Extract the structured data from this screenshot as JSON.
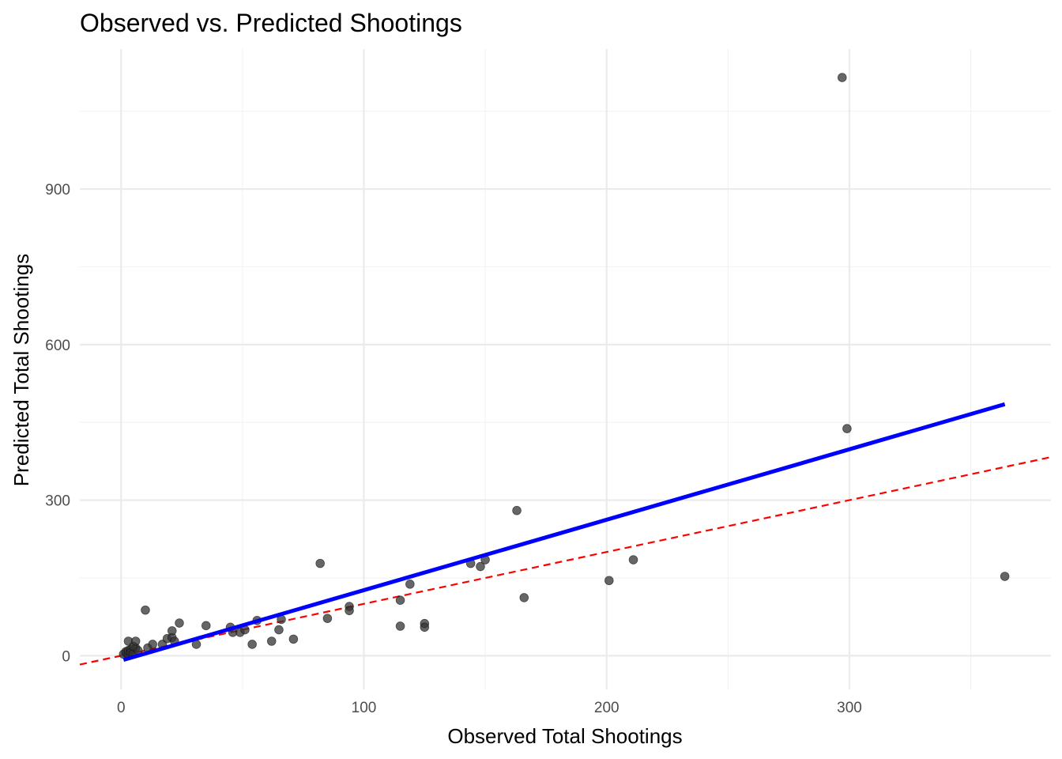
{
  "chart_data": {
    "type": "scatter",
    "title": "Observed vs. Predicted Shootings",
    "xlabel": "Observed Total Shootings",
    "ylabel": "Predicted Total Shootings",
    "xlim": [
      -17,
      383
    ],
    "ylim": [
      -65,
      1170
    ],
    "x_ticks": [
      0,
      100,
      200,
      300
    ],
    "y_ticks": [
      0,
      300,
      600,
      900
    ],
    "x_minor": [
      50,
      150,
      250,
      350
    ],
    "y_minor": [
      150,
      450,
      750,
      1050
    ],
    "grid": true,
    "points": {
      "color": "#333333",
      "opacity": 0.75,
      "data": [
        [
          1,
          3
        ],
        [
          2,
          5
        ],
        [
          2,
          8
        ],
        [
          3,
          2
        ],
        [
          3,
          10
        ],
        [
          4,
          12
        ],
        [
          4,
          6
        ],
        [
          5,
          4
        ],
        [
          6,
          15
        ],
        [
          7,
          10
        ],
        [
          5,
          18
        ],
        [
          3,
          28
        ],
        [
          6,
          28
        ],
        [
          10,
          88
        ],
        [
          11,
          15
        ],
        [
          13,
          22
        ],
        [
          17,
          22
        ],
        [
          19,
          33
        ],
        [
          21,
          35
        ],
        [
          21,
          48
        ],
        [
          22,
          28
        ],
        [
          24,
          63
        ],
        [
          31,
          22
        ],
        [
          35,
          58
        ],
        [
          45,
          55
        ],
        [
          46,
          45
        ],
        [
          49,
          45
        ],
        [
          51,
          50
        ],
        [
          54,
          22
        ],
        [
          56,
          68
        ],
        [
          62,
          28
        ],
        [
          65,
          50
        ],
        [
          66,
          70
        ],
        [
          71,
          32
        ],
        [
          82,
          178
        ],
        [
          85,
          72
        ],
        [
          94,
          95
        ],
        [
          94,
          87
        ],
        [
          115,
          107
        ],
        [
          115,
          57
        ],
        [
          119,
          138
        ],
        [
          125,
          62
        ],
        [
          125,
          55
        ],
        [
          144,
          178
        ],
        [
          148,
          172
        ],
        [
          150,
          185
        ],
        [
          163,
          280
        ],
        [
          166,
          112
        ],
        [
          201,
          145
        ],
        [
          211,
          185
        ],
        [
          297,
          1115
        ],
        [
          299,
          438
        ],
        [
          364,
          153
        ]
      ]
    },
    "fit_line": {
      "color": "#0000ff",
      "x": [
        1,
        364
      ],
      "y": [
        -8,
        485
      ]
    },
    "reference_line": {
      "color": "#ff0000",
      "style": "dashed",
      "slope": 1,
      "intercept": 0
    }
  }
}
